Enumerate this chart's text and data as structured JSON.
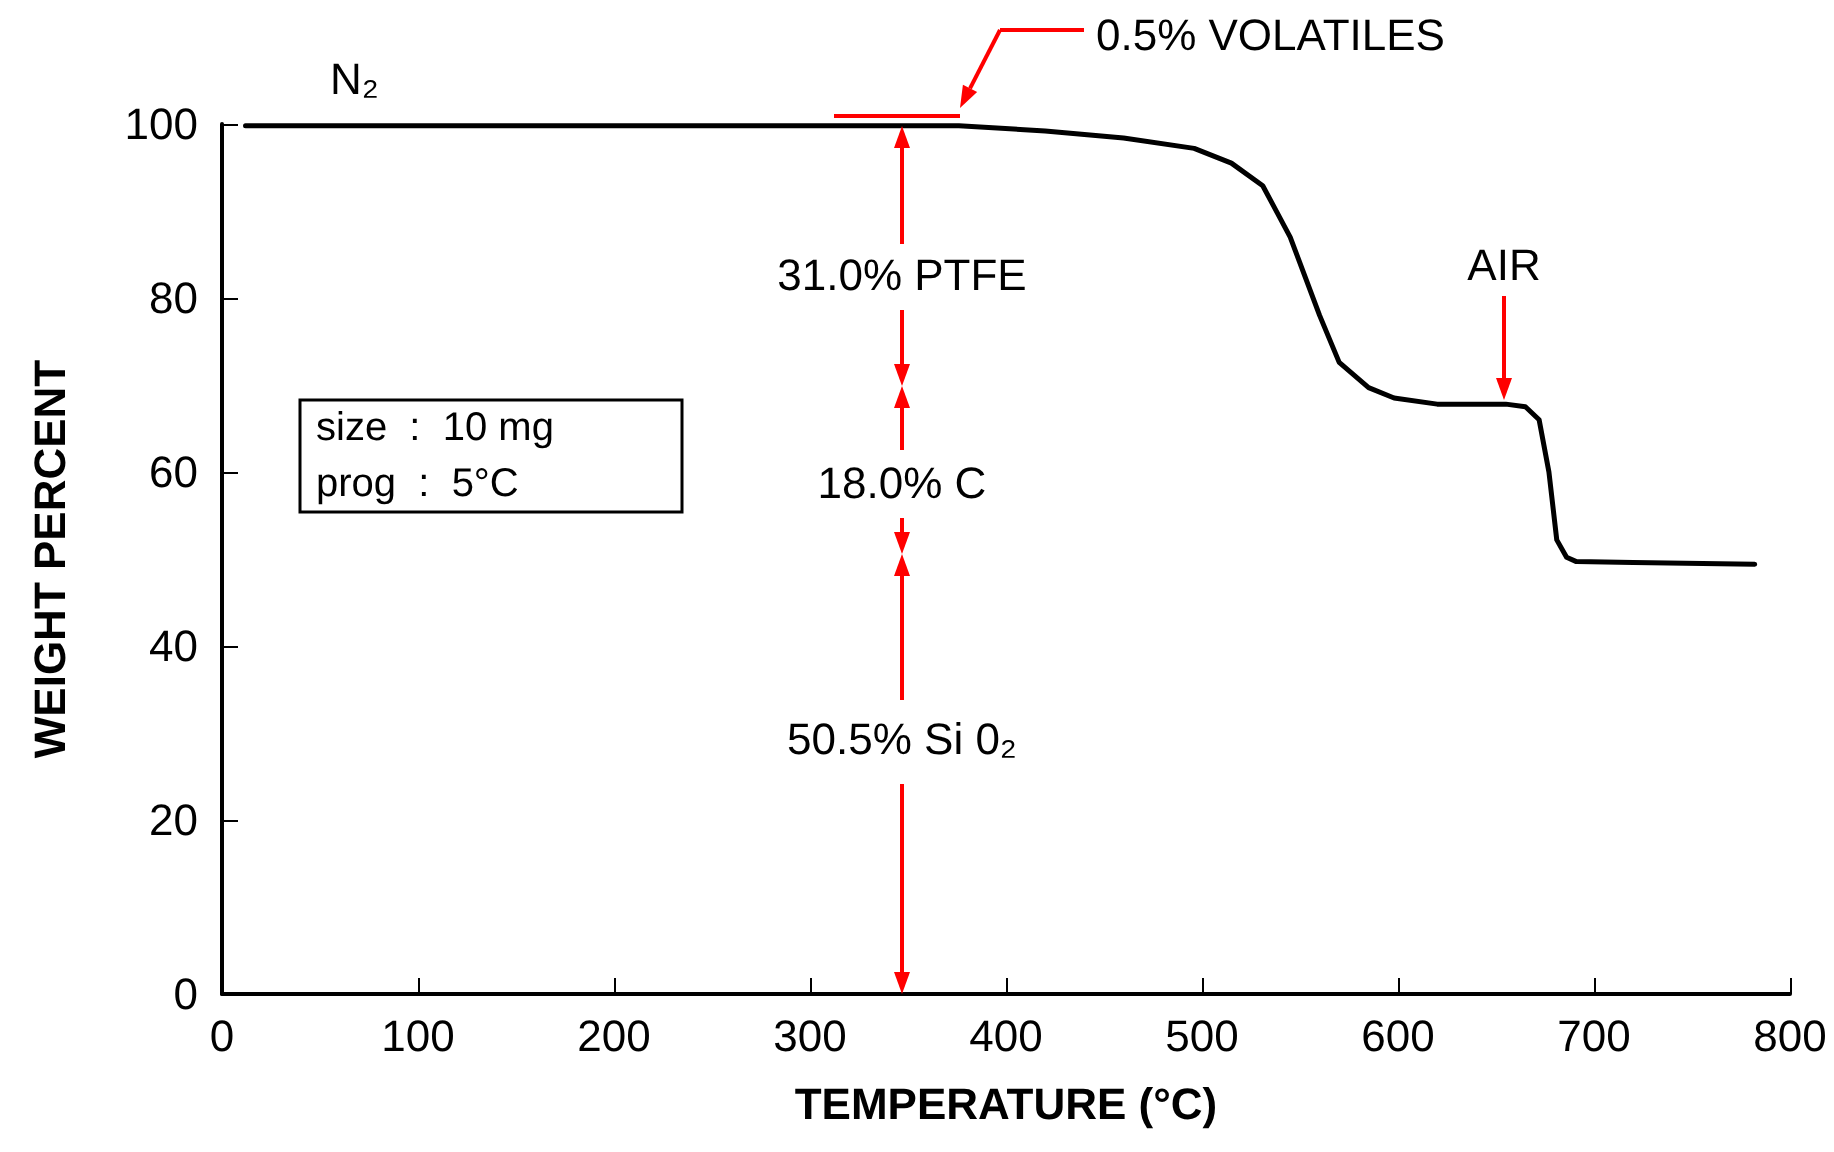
{
  "chart_data": {
    "type": "line",
    "xlabel": "TEMPERATURE (°C)",
    "ylabel": "WEIGHT PERCENT",
    "xlim": [
      0,
      800
    ],
    "xticks": [
      0,
      100,
      200,
      300,
      400,
      500,
      600,
      700,
      800
    ],
    "ylim": [
      0,
      100
    ],
    "yticks": [
      0,
      20,
      40,
      60,
      80,
      100
    ],
    "grid": false,
    "marker": "none",
    "line_style": "solid",
    "series": [
      {
        "color": "#000000",
        "x": [
          12,
          100,
          200,
          300,
          376,
          420,
          460,
          496,
          515,
          531,
          545,
          560,
          570,
          585,
          598,
          620,
          655,
          665,
          672,
          677,
          681,
          686,
          691,
          720,
          782
        ],
        "values": [
          99.8,
          99.8,
          99.8,
          99.8,
          99.8,
          99.2,
          98.4,
          97.2,
          95.5,
          92.9,
          87,
          78,
          72.6,
          69.7,
          68.5,
          67.8,
          67.8,
          67.5,
          66,
          60,
          52.2,
          50.2,
          49.7,
          49.6,
          49.4
        ]
      }
    ],
    "annotations": [
      "N₂",
      "size  :  10 mg",
      "prog  :  5°C",
      "0.5% VOLATILES",
      "31.0% PTFE",
      "18.0% C",
      "50.5% Si 0₂",
      "AIR"
    ]
  }
}
